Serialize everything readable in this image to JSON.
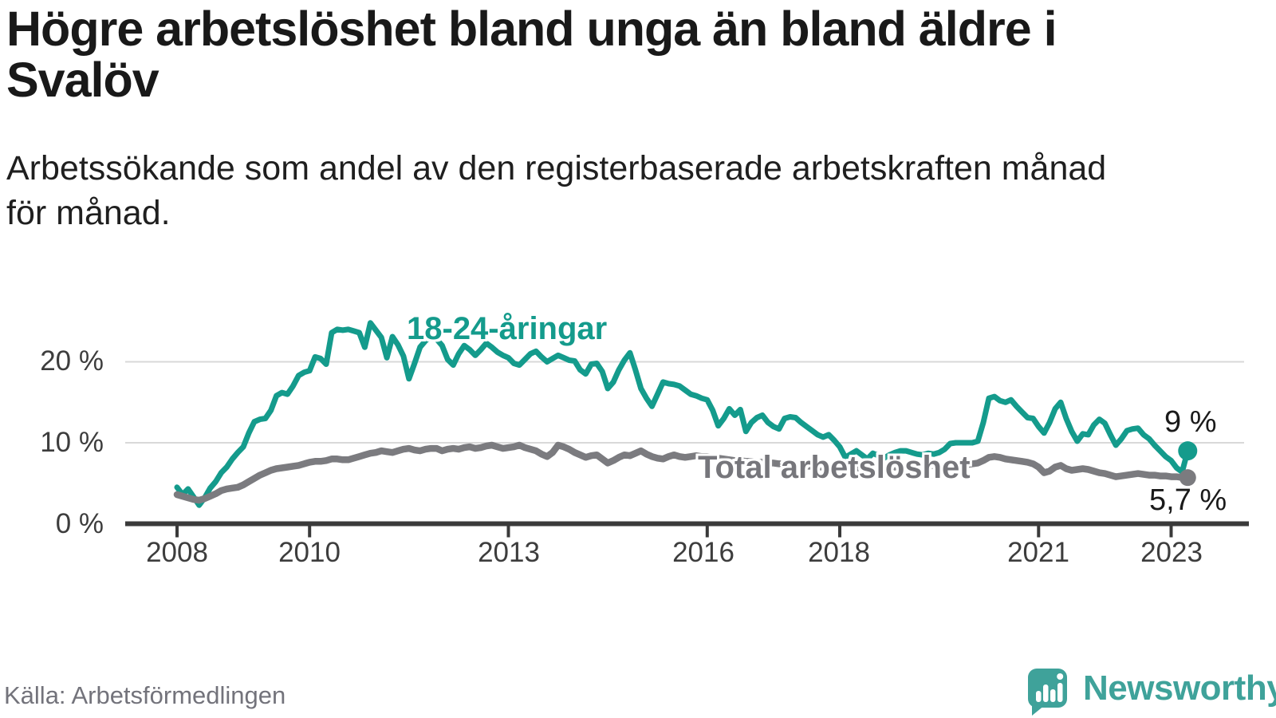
{
  "header": {
    "title_lines": [
      "Högre arbetslöshet bland unga än bland äldre i",
      "Svalöv"
    ],
    "subtitle_lines": [
      "Arbetssökande som andel av den registerbaserade arbetskraften månad",
      "för månad."
    ]
  },
  "footer": {
    "source": "Källa: Arbetsförmedlingen",
    "brand": "Newsworthy"
  },
  "colors": {
    "youth": "#149b8c",
    "total": "#7b7b7f",
    "axis": "#3a3a3a",
    "grid": "#d9d9d9",
    "logo_teal": "#3fa29a"
  },
  "chart_data": {
    "type": "line",
    "title": "Högre arbetslöshet bland unga än bland äldre i Svalöv",
    "subtitle": "Arbetssökande som andel av den registerbaserade arbetskraften månad för månad.",
    "unit": "%",
    "x_start": "2008-01",
    "x_end": "2023-04",
    "freq": "monthly",
    "ylim": [
      0,
      26
    ],
    "grid": "horizontal",
    "y_ticks": [
      {
        "label": "20 %",
        "value": 20
      },
      {
        "label": "10 %",
        "value": 10
      },
      {
        "label": "0 %",
        "value": 0
      }
    ],
    "x_ticks": [
      {
        "label": "2008",
        "year": 2008
      },
      {
        "label": "2010",
        "year": 2010
      },
      {
        "label": "2013",
        "year": 2013
      },
      {
        "label": "2016",
        "year": 2016
      },
      {
        "label": "2018",
        "year": 2018
      },
      {
        "label": "2021",
        "year": 2021
      },
      {
        "label": "2023",
        "year": 2023
      }
    ],
    "series": [
      {
        "name": "18-24-åringar",
        "color": "#149b8c",
        "end_label": "9 %",
        "end_value": 9.0,
        "values": [
          4.5,
          3.6,
          4.3,
          3.3,
          2.3,
          3.2,
          4.4,
          5.2,
          6.3,
          7.0,
          8.0,
          8.8,
          9.5,
          11.2,
          12.6,
          12.9,
          13.0,
          14.0,
          15.8,
          16.2,
          16.0,
          17.0,
          18.3,
          18.7,
          18.9,
          20.6,
          20.4,
          19.7,
          23.6,
          24.0,
          23.9,
          24.0,
          23.8,
          23.6,
          21.8,
          24.8,
          23.9,
          23.0,
          20.5,
          23.1,
          22.1,
          20.7,
          17.9,
          19.8,
          21.8,
          22.6,
          23.1,
          22.8,
          22.0,
          20.3,
          19.6,
          21.0,
          22.0,
          21.5,
          20.8,
          21.5,
          22.3,
          21.8,
          21.2,
          20.8,
          20.5,
          19.8,
          19.6,
          20.3,
          21.0,
          21.3,
          20.6,
          20.0,
          20.4,
          20.8,
          20.5,
          20.2,
          20.1,
          19.0,
          18.5,
          19.7,
          19.8,
          18.8,
          16.7,
          17.5,
          19.0,
          20.2,
          21.1,
          19.0,
          16.7,
          15.5,
          14.5,
          16.0,
          17.5,
          17.3,
          17.2,
          17.0,
          16.5,
          16.0,
          15.8,
          15.5,
          15.3,
          14.0,
          12.1,
          13.0,
          14.2,
          13.4,
          14.1,
          11.4,
          12.5,
          13.1,
          13.4,
          12.5,
          12.0,
          11.7,
          13.0,
          13.2,
          13.1,
          12.5,
          12.0,
          11.5,
          11.0,
          10.7,
          11.0,
          10.3,
          9.5,
          8.2,
          8.6,
          9.0,
          8.5,
          8.0,
          8.7,
          8.4,
          8.1,
          8.5,
          8.8,
          9.0,
          9.0,
          8.8,
          8.6,
          8.5,
          8.7,
          8.6,
          8.8,
          9.2,
          9.9,
          10.0,
          10.0,
          10.0,
          10.0,
          10.2,
          12.5,
          15.5,
          15.7,
          15.2,
          15.0,
          15.3,
          14.5,
          13.8,
          13.1,
          13.0,
          12.0,
          11.2,
          12.5,
          14.2,
          15.0,
          13.0,
          11.4,
          10.2,
          11.1,
          11.0,
          12.2,
          12.9,
          12.4,
          11.0,
          9.7,
          10.5,
          11.5,
          11.7,
          11.8,
          11.0,
          10.5,
          9.7,
          9.0,
          8.3,
          7.8,
          6.9,
          6.4,
          9.0
        ]
      },
      {
        "name": "Total arbetslöshet",
        "color": "#7b7b7f",
        "end_label": "5,7 %",
        "end_value": 5.7,
        "values": [
          3.6,
          3.4,
          3.2,
          3.0,
          2.9,
          3.1,
          3.4,
          3.7,
          4.1,
          4.3,
          4.4,
          4.5,
          4.8,
          5.2,
          5.6,
          6.0,
          6.3,
          6.6,
          6.8,
          6.9,
          7.0,
          7.1,
          7.2,
          7.4,
          7.6,
          7.7,
          7.7,
          7.8,
          8.0,
          8.0,
          7.9,
          7.9,
          8.1,
          8.3,
          8.5,
          8.7,
          8.8,
          9.0,
          8.9,
          8.8,
          9.0,
          9.2,
          9.3,
          9.1,
          9.0,
          9.2,
          9.3,
          9.3,
          9.0,
          9.2,
          9.3,
          9.2,
          9.4,
          9.5,
          9.3,
          9.4,
          9.6,
          9.7,
          9.5,
          9.3,
          9.4,
          9.5,
          9.7,
          9.4,
          9.2,
          9.0,
          8.6,
          8.3,
          8.8,
          9.7,
          9.5,
          9.2,
          8.8,
          8.5,
          8.2,
          8.4,
          8.5,
          8.0,
          7.5,
          7.8,
          8.2,
          8.5,
          8.4,
          8.7,
          9.0,
          8.6,
          8.3,
          8.1,
          8.0,
          8.3,
          8.5,
          8.3,
          8.2,
          8.3,
          8.4,
          8.3,
          8.3,
          8.2,
          8.1,
          8.0,
          7.9,
          7.8,
          7.8,
          7.7,
          7.7,
          7.6,
          7.6,
          7.5,
          7.5,
          7.4,
          7.4,
          7.3,
          7.2,
          7.2,
          7.1,
          7.1,
          7.0,
          7.0,
          7.0,
          7.0,
          7.0,
          6.9,
          6.9,
          6.8,
          6.8,
          6.8,
          6.8,
          6.9,
          6.9,
          7.0,
          7.0,
          7.0,
          7.0,
          7.0,
          7.1,
          7.1,
          7.1,
          7.2,
          7.2,
          7.2,
          7.2,
          7.3,
          7.3,
          7.3,
          7.4,
          7.5,
          7.8,
          8.2,
          8.3,
          8.2,
          8.0,
          7.9,
          7.8,
          7.7,
          7.6,
          7.4,
          7.0,
          6.3,
          6.5,
          7.0,
          7.2,
          6.8,
          6.6,
          6.7,
          6.8,
          6.7,
          6.5,
          6.3,
          6.2,
          6.0,
          5.8,
          5.9,
          6.0,
          6.1,
          6.2,
          6.1,
          6.0,
          6.0,
          5.9,
          5.9,
          5.8,
          5.8,
          5.7,
          5.7
        ]
      }
    ]
  }
}
